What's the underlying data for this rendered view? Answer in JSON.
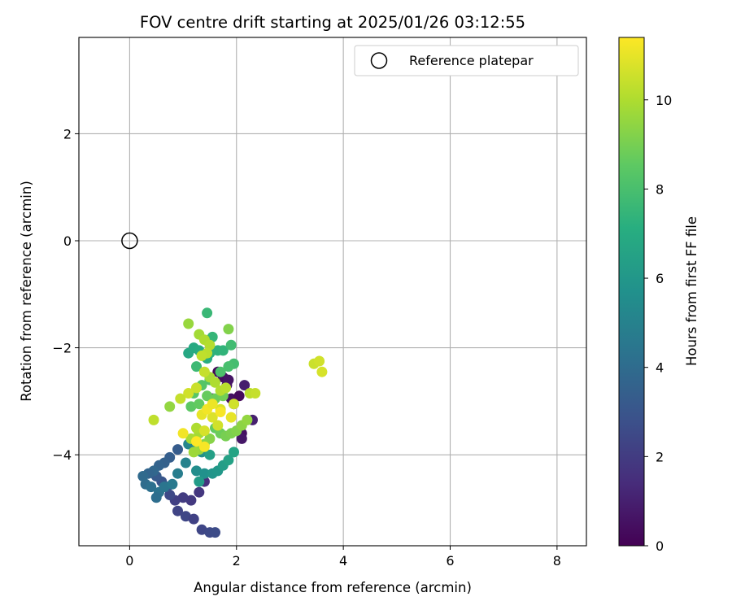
{
  "chart_data": {
    "type": "scatter",
    "title": "FOV centre drift starting at 2025/01/26 03:12:55",
    "xlabel": "Angular distance from reference (arcmin)",
    "ylabel": "Rotation from reference (arcmin)",
    "xlim": [
      -0.95,
      8.55
    ],
    "ylim": [
      -5.7,
      3.8
    ],
    "x_ticks": [
      0,
      2,
      4,
      6,
      8
    ],
    "y_ticks": [
      -4,
      -2,
      0,
      2
    ],
    "x_tick_labels": [
      "0",
      "2",
      "4",
      "6",
      "8"
    ],
    "y_tick_labels": [
      "−4",
      "−2",
      "0",
      "2"
    ],
    "grid": true,
    "legend": {
      "position": "top-right",
      "entries": [
        "Reference platepar"
      ]
    },
    "reference_point": {
      "name": "Reference platepar",
      "x": 0,
      "y": 0,
      "marker": "hollow-circle"
    },
    "colorbar": {
      "label": "Hours from first FF file",
      "min": 0,
      "max": 11.4,
      "ticks": [
        0,
        2,
        4,
        6,
        8,
        10
      ],
      "tick_labels": [
        "0",
        "2",
        "4",
        "6",
        "8",
        "10"
      ],
      "colormap": "viridis"
    },
    "series": [
      {
        "point_fields": [
          "x",
          "y",
          "hours"
        ],
        "points": [
          [
            1.65,
            -2.45,
            0.2
          ],
          [
            1.75,
            -2.55,
            0.4
          ],
          [
            1.82,
            -2.7,
            0.6
          ],
          [
            1.9,
            -2.95,
            0.5
          ],
          [
            1.95,
            -3.05,
            0.8
          ],
          [
            2.05,
            -2.9,
            0.3
          ],
          [
            2.15,
            -2.7,
            0.9
          ],
          [
            2.1,
            -3.6,
            0.5
          ],
          [
            2.1,
            -3.7,
            0.7
          ],
          [
            2.3,
            -3.35,
            1.0
          ],
          [
            1.85,
            -2.6,
            0.6
          ],
          [
            1.55,
            -2.95,
            0.8
          ],
          [
            1.4,
            -4.5,
            1.6
          ],
          [
            1.3,
            -4.7,
            1.8
          ],
          [
            1.15,
            -4.85,
            1.9
          ],
          [
            1.0,
            -4.8,
            2.0
          ],
          [
            0.85,
            -4.85,
            2.1
          ],
          [
            0.9,
            -5.05,
            2.3
          ],
          [
            1.05,
            -5.15,
            2.4
          ],
          [
            1.2,
            -5.2,
            2.2
          ],
          [
            1.35,
            -5.4,
            2.4
          ],
          [
            1.5,
            -5.45,
            2.5
          ],
          [
            1.6,
            -5.45,
            2.6
          ],
          [
            0.75,
            -4.75,
            2.5
          ],
          [
            0.7,
            -4.6,
            2.8
          ],
          [
            0.6,
            -4.5,
            3.0
          ],
          [
            0.5,
            -4.4,
            3.2
          ],
          [
            0.9,
            -3.9,
            3.3
          ],
          [
            0.75,
            -4.05,
            3.4
          ],
          [
            0.65,
            -4.15,
            3.5
          ],
          [
            0.55,
            -4.2,
            3.6
          ],
          [
            0.45,
            -4.3,
            3.8
          ],
          [
            0.35,
            -4.35,
            3.7
          ],
          [
            0.25,
            -4.4,
            3.9
          ],
          [
            0.3,
            -4.55,
            4.0
          ],
          [
            0.4,
            -4.6,
            4.2
          ],
          [
            0.55,
            -4.7,
            4.3
          ],
          [
            0.5,
            -4.8,
            4.1
          ],
          [
            0.65,
            -4.6,
            4.4
          ],
          [
            0.8,
            -4.55,
            4.6
          ],
          [
            0.9,
            -4.35,
            4.8
          ],
          [
            1.05,
            -4.15,
            5.0
          ],
          [
            1.1,
            -3.8,
            5.2
          ],
          [
            1.25,
            -3.85,
            5.4
          ],
          [
            1.35,
            -3.95,
            5.6
          ],
          [
            1.25,
            -4.3,
            5.5
          ],
          [
            1.4,
            -4.35,
            5.7
          ],
          [
            1.55,
            -4.35,
            5.9
          ],
          [
            1.65,
            -4.3,
            6.0
          ],
          [
            1.3,
            -4.5,
            6.2
          ],
          [
            1.75,
            -4.2,
            6.3
          ],
          [
            1.85,
            -4.1,
            6.5
          ],
          [
            1.95,
            -3.95,
            6.6
          ],
          [
            1.5,
            -4.0,
            6.4
          ],
          [
            1.1,
            -2.1,
            6.8
          ],
          [
            1.2,
            -2.0,
            6.9
          ],
          [
            1.3,
            -2.05,
            7.0
          ],
          [
            1.45,
            -2.2,
            7.1
          ],
          [
            1.5,
            -2.1,
            7.2
          ],
          [
            1.65,
            -2.05,
            7.3
          ],
          [
            1.75,
            -2.05,
            7.4
          ],
          [
            1.55,
            -1.8,
            7.5
          ],
          [
            1.45,
            -1.35,
            7.6
          ],
          [
            1.25,
            -2.35,
            7.7
          ],
          [
            1.9,
            -1.95,
            7.8
          ],
          [
            1.95,
            -2.3,
            7.9
          ],
          [
            1.85,
            -2.35,
            8.0
          ],
          [
            1.7,
            -2.45,
            8.1
          ],
          [
            1.5,
            -2.6,
            8.2
          ],
          [
            1.35,
            -2.7,
            8.3
          ],
          [
            1.2,
            -2.85,
            8.4
          ],
          [
            1.15,
            -3.1,
            8.5
          ],
          [
            1.3,
            -3.05,
            8.6
          ],
          [
            1.45,
            -2.9,
            8.7
          ],
          [
            1.6,
            -2.95,
            8.8
          ],
          [
            1.75,
            -2.9,
            8.9
          ],
          [
            1.6,
            -3.5,
            8.6
          ],
          [
            1.7,
            -3.6,
            8.8
          ],
          [
            1.8,
            -3.65,
            9.0
          ],
          [
            1.9,
            -3.6,
            9.1
          ],
          [
            2.0,
            -3.55,
            9.2
          ],
          [
            2.1,
            -3.45,
            9.4
          ],
          [
            2.2,
            -3.35,
            9.5
          ],
          [
            1.5,
            -3.7,
            9.3
          ],
          [
            1.4,
            -3.8,
            9.4
          ],
          [
            1.3,
            -3.9,
            9.6
          ],
          [
            1.2,
            -3.95,
            9.7
          ],
          [
            1.3,
            -3.6,
            9.8
          ],
          [
            1.15,
            -3.7,
            9.9
          ],
          [
            1.25,
            -3.5,
            10.0
          ],
          [
            1.85,
            -1.65,
            9.2
          ],
          [
            1.1,
            -1.55,
            9.6
          ],
          [
            1.3,
            -1.75,
            9.8
          ],
          [
            1.4,
            -1.85,
            10.0
          ],
          [
            1.5,
            -1.95,
            10.1
          ],
          [
            1.45,
            -2.1,
            10.2
          ],
          [
            1.35,
            -2.15,
            10.3
          ],
          [
            1.5,
            -2.55,
            9.9
          ],
          [
            1.6,
            -2.65,
            10.0
          ],
          [
            1.7,
            -2.8,
            10.1
          ],
          [
            1.8,
            -2.75,
            10.2
          ],
          [
            1.4,
            -2.45,
            10.4
          ],
          [
            1.25,
            -2.75,
            10.5
          ],
          [
            1.1,
            -2.85,
            10.6
          ],
          [
            0.95,
            -2.95,
            10.4
          ],
          [
            0.75,
            -3.1,
            9.5
          ],
          [
            0.45,
            -3.35,
            10.3
          ],
          [
            2.25,
            -2.85,
            10.2
          ],
          [
            2.35,
            -2.85,
            10.4
          ],
          [
            1.95,
            -3.05,
            10.6
          ],
          [
            1.7,
            -3.15,
            10.7
          ],
          [
            1.55,
            -3.3,
            10.8
          ],
          [
            1.65,
            -3.45,
            10.6
          ],
          [
            1.4,
            -3.55,
            10.7
          ],
          [
            1.35,
            -3.25,
            11.0
          ],
          [
            1.45,
            -3.15,
            11.2
          ],
          [
            1.55,
            -3.05,
            11.1
          ],
          [
            1.7,
            -3.2,
            11.3
          ],
          [
            1.9,
            -3.3,
            11.0
          ],
          [
            1.0,
            -3.6,
            11.2
          ],
          [
            1.25,
            -3.75,
            11.4
          ],
          [
            1.4,
            -3.85,
            11.3
          ],
          [
            3.45,
            -2.3,
            10.5
          ],
          [
            3.55,
            -2.25,
            10.6
          ],
          [
            3.6,
            -2.45,
            10.7
          ]
        ]
      }
    ]
  }
}
